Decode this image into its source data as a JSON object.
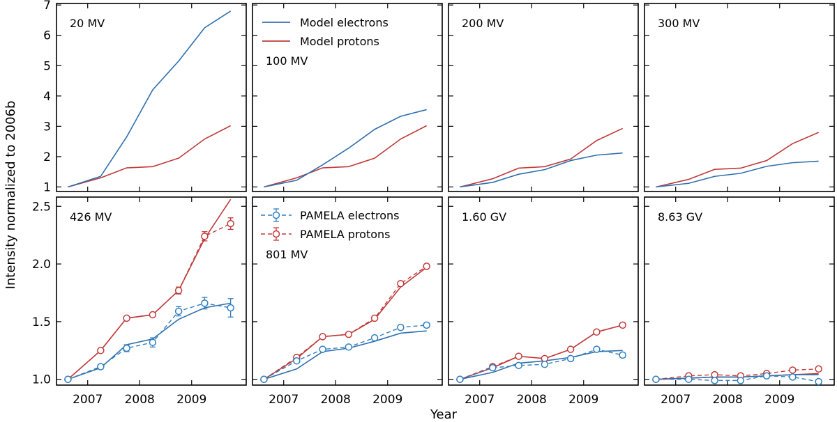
{
  "figure": {
    "ylabel": "Intensity normalized to 2006b",
    "xlabel": "Year"
  },
  "chart_data": {
    "type": "line",
    "x_ticks": [
      2007,
      2008,
      2009
    ],
    "x_tick_labels": [
      "2007",
      "2008",
      "2009"
    ],
    "xlim": [
      2006.4,
      2010.05
    ],
    "top_row": {
      "ylim": [
        0.85,
        7.05
      ],
      "y_ticks": [
        1,
        2,
        3,
        4,
        5,
        6,
        7
      ],
      "y_tick_labels": [
        "1",
        "2",
        "3",
        "4",
        "5",
        "6",
        "7"
      ]
    },
    "bottom_row": {
      "ylim": [
        0.95,
        2.58
      ],
      "y_ticks": [
        1.0,
        1.5,
        2.0,
        2.5
      ],
      "y_tick_labels": [
        "1.0",
        "1.5",
        "2.0",
        "2.5"
      ]
    },
    "legends": {
      "model": [
        {
          "label": "Model electrons",
          "color": "#2f6fad"
        },
        {
          "label": "Model protons",
          "color": "#c03a3a"
        }
      ],
      "pamela": [
        {
          "label": "PAMELA electrons",
          "color": "#2f7fc1"
        },
        {
          "label": "PAMELA protons",
          "color": "#c03a3a"
        }
      ]
    },
    "colors": {
      "electrons_model": "#2f6fad",
      "protons_model": "#c03a3a",
      "electrons_data": "#2f7fc1",
      "protons_data": "#c03a3a"
    },
    "x_model": [
      2006.62,
      2007.25,
      2007.75,
      2008.25,
      2008.75,
      2009.25,
      2009.75
    ],
    "x_data": [
      2006.62,
      2007.25,
      2007.75,
      2008.25,
      2008.75,
      2009.25,
      2009.75
    ],
    "panels": [
      {
        "label": "20 MV",
        "row": "top",
        "model_electrons": [
          1.0,
          1.35,
          2.65,
          4.2,
          5.15,
          6.25,
          6.8
        ],
        "model_protons": [
          1.0,
          1.3,
          1.63,
          1.67,
          1.95,
          2.58,
          3.02
        ]
      },
      {
        "label": "100 MV",
        "row": "top",
        "model_electrons": [
          1.0,
          1.22,
          1.73,
          2.28,
          2.9,
          3.33,
          3.55
        ],
        "model_protons": [
          1.0,
          1.3,
          1.63,
          1.67,
          1.95,
          2.58,
          3.02
        ]
      },
      {
        "label": "200 MV",
        "row": "top",
        "model_electrons": [
          1.0,
          1.15,
          1.42,
          1.57,
          1.87,
          2.05,
          2.12
        ],
        "model_protons": [
          1.0,
          1.27,
          1.62,
          1.67,
          1.92,
          2.53,
          2.93
        ]
      },
      {
        "label": "300 MV",
        "row": "top",
        "model_electrons": [
          1.0,
          1.12,
          1.35,
          1.45,
          1.68,
          1.8,
          1.85
        ],
        "model_protons": [
          1.0,
          1.25,
          1.58,
          1.62,
          1.87,
          2.43,
          2.8
        ]
      },
      {
        "label": "426 MV",
        "row": "bottom",
        "model_electrons": [
          1.0,
          1.1,
          1.3,
          1.35,
          1.52,
          1.62,
          1.66
        ],
        "model_protons": [
          1.0,
          1.25,
          1.53,
          1.56,
          1.77,
          2.22,
          2.56
        ],
        "data_electrons": [
          1.0,
          1.11,
          1.27,
          1.32,
          1.59,
          1.66,
          1.62
        ],
        "data_electrons_err": [
          0.01,
          0.02,
          0.03,
          0.04,
          0.04,
          0.05,
          0.08
        ],
        "data_protons": [
          1.0,
          1.25,
          1.53,
          1.56,
          1.77,
          2.24,
          2.35
        ],
        "data_protons_err": [
          0.01,
          0.01,
          0.01,
          0.01,
          0.03,
          0.04,
          0.05
        ]
      },
      {
        "label": "801 MV",
        "row": "bottom",
        "model_electrons": [
          1.0,
          1.09,
          1.24,
          1.27,
          1.33,
          1.4,
          1.42
        ],
        "model_protons": [
          1.0,
          1.18,
          1.37,
          1.39,
          1.52,
          1.8,
          1.97
        ],
        "data_electrons": [
          1.0,
          1.16,
          1.26,
          1.28,
          1.36,
          1.45,
          1.47
        ],
        "data_electrons_err": [
          0.01,
          0.01,
          0.01,
          0.01,
          0.01,
          0.02,
          0.02
        ],
        "data_protons": [
          1.0,
          1.19,
          1.37,
          1.39,
          1.53,
          1.83,
          1.98
        ],
        "data_protons_err": [
          0.01,
          0.01,
          0.01,
          0.01,
          0.01,
          0.01,
          0.01
        ]
      },
      {
        "label": "1.60 GV",
        "row": "bottom",
        "model_electrons": [
          1.0,
          1.06,
          1.14,
          1.16,
          1.19,
          1.24,
          1.25
        ],
        "model_protons": [
          1.0,
          1.1,
          1.2,
          1.18,
          1.26,
          1.41,
          1.47
        ],
        "data_electrons": [
          1.0,
          1.1,
          1.12,
          1.13,
          1.18,
          1.26,
          1.21
        ],
        "data_electrons_err": [
          0.01,
          0.01,
          0.01,
          0.01,
          0.02,
          0.02,
          0.02
        ],
        "data_protons": [
          1.0,
          1.11,
          1.2,
          1.18,
          1.26,
          1.41,
          1.47
        ],
        "data_protons_err": [
          0.01,
          0.01,
          0.01,
          0.01,
          0.01,
          0.01,
          0.01
        ]
      },
      {
        "label": "8.63 GV",
        "row": "bottom",
        "model_electrons": [
          1.0,
          1.01,
          1.02,
          1.02,
          1.03,
          1.04,
          1.04
        ],
        "model_protons": [
          1.0,
          1.01,
          1.02,
          1.02,
          1.03,
          1.04,
          1.05
        ],
        "data_electrons": [
          1.0,
          1.0,
          0.99,
          0.99,
          1.03,
          1.02,
          0.98
        ],
        "data_electrons_err": [
          0.01,
          0.01,
          0.01,
          0.01,
          0.01,
          0.02,
          0.02
        ],
        "data_protons": [
          1.0,
          1.03,
          1.04,
          1.03,
          1.05,
          1.08,
          1.09
        ],
        "data_protons_err": [
          0.01,
          0.01,
          0.01,
          0.01,
          0.01,
          0.01,
          0.01
        ]
      }
    ]
  }
}
